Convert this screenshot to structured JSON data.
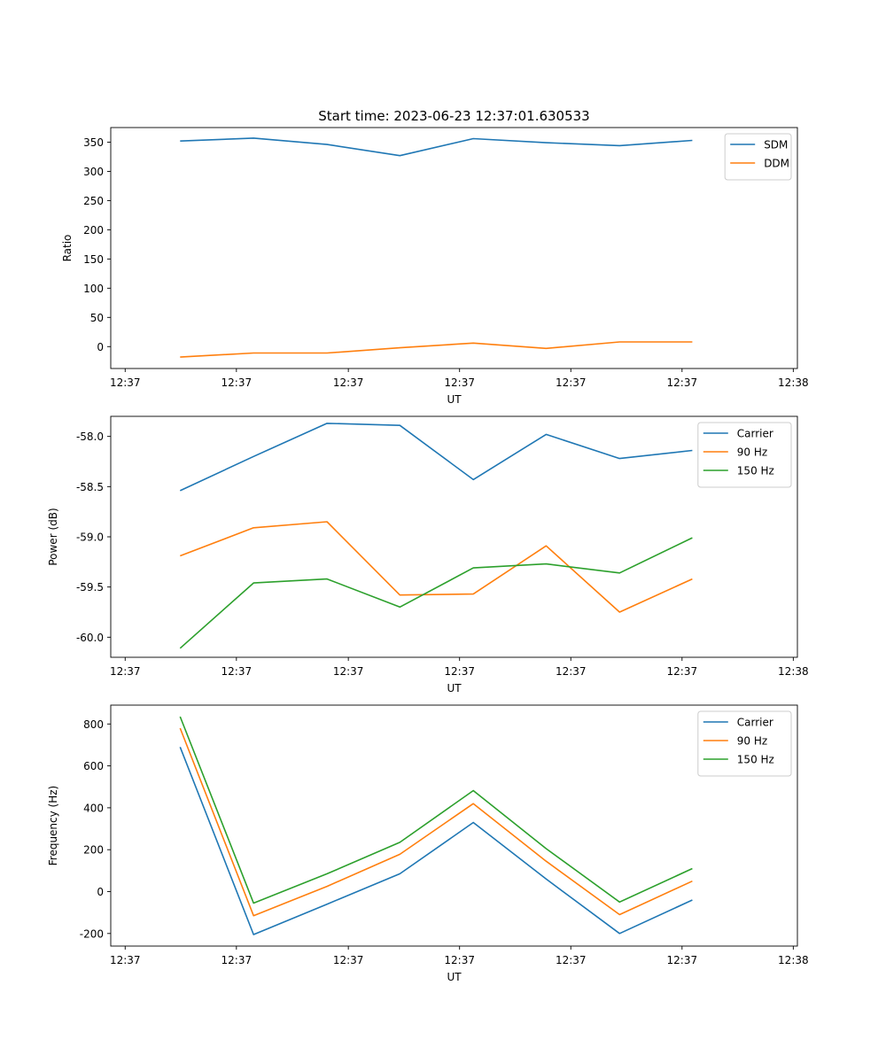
{
  "figure": {
    "title": "Start time: 2023-06-23 12:37:01.630533"
  },
  "chart_data": [
    {
      "type": "line",
      "title": "Start time: 2023-06-23 12:37:01.630533",
      "xlabel": "UT",
      "ylabel": "Ratio",
      "x_ticks": [
        "12:37",
        "12:37",
        "12:37",
        "12:37",
        "12:37",
        "12:37",
        "12:38"
      ],
      "y_ticks": [
        0,
        50,
        100,
        150,
        200,
        250,
        300,
        350
      ],
      "ylim": [
        -37.5,
        375
      ],
      "legend_position": "top-right",
      "grid": false,
      "series": [
        {
          "name": "SDM",
          "color": "#1f77b4",
          "values": [
            352,
            357,
            346,
            327,
            356,
            349,
            344,
            353
          ]
        },
        {
          "name": "DDM",
          "color": "#ff7f0e",
          "values": [
            -18,
            -11,
            -11,
            -2,
            6,
            -3,
            8,
            8
          ]
        }
      ]
    },
    {
      "type": "line",
      "title": "",
      "xlabel": "UT",
      "ylabel": "Power (dB)",
      "x_ticks": [
        "12:37",
        "12:37",
        "12:37",
        "12:37",
        "12:37",
        "12:37",
        "12:38"
      ],
      "y_ticks": [
        "-60.0",
        "-59.5",
        "-59.0",
        "-58.5",
        "-58.0"
      ],
      "ylim": [
        -60.2,
        -57.8
      ],
      "legend_position": "top-right",
      "grid": false,
      "series": [
        {
          "name": "Carrier",
          "color": "#1f77b4",
          "values": [
            -58.54,
            -58.2,
            -57.87,
            -57.89,
            -58.43,
            -57.98,
            -58.22,
            -58.14
          ]
        },
        {
          "name": "90 Hz",
          "color": "#ff7f0e",
          "values": [
            -59.19,
            -58.91,
            -58.85,
            -59.58,
            -59.57,
            -59.09,
            -59.75,
            -59.42
          ]
        },
        {
          "name": "150 Hz",
          "color": "#2ca02c",
          "values": [
            -60.11,
            -59.46,
            -59.42,
            -59.7,
            -59.31,
            -59.27,
            -59.36,
            -59.01
          ]
        }
      ]
    },
    {
      "type": "line",
      "title": "",
      "xlabel": "UT",
      "ylabel": "Frequency (Hz)",
      "x_ticks": [
        "12:37",
        "12:37",
        "12:37",
        "12:37",
        "12:37",
        "12:37",
        "12:38"
      ],
      "y_ticks": [
        -200,
        0,
        200,
        400,
        600,
        800
      ],
      "ylim": [
        -260,
        890
      ],
      "legend_position": "top-right",
      "grid": false,
      "series": [
        {
          "name": "Carrier",
          "color": "#1f77b4",
          "values": [
            690,
            -205,
            -60,
            85,
            330,
            60,
            -200,
            -40
          ]
        },
        {
          "name": "90 Hz",
          "color": "#ff7f0e",
          "values": [
            780,
            -115,
            25,
            178,
            420,
            145,
            -110,
            50
          ]
        },
        {
          "name": "150 Hz",
          "color": "#2ca02c",
          "values": [
            835,
            -55,
            85,
            235,
            482,
            205,
            -50,
            110
          ]
        }
      ]
    }
  ]
}
